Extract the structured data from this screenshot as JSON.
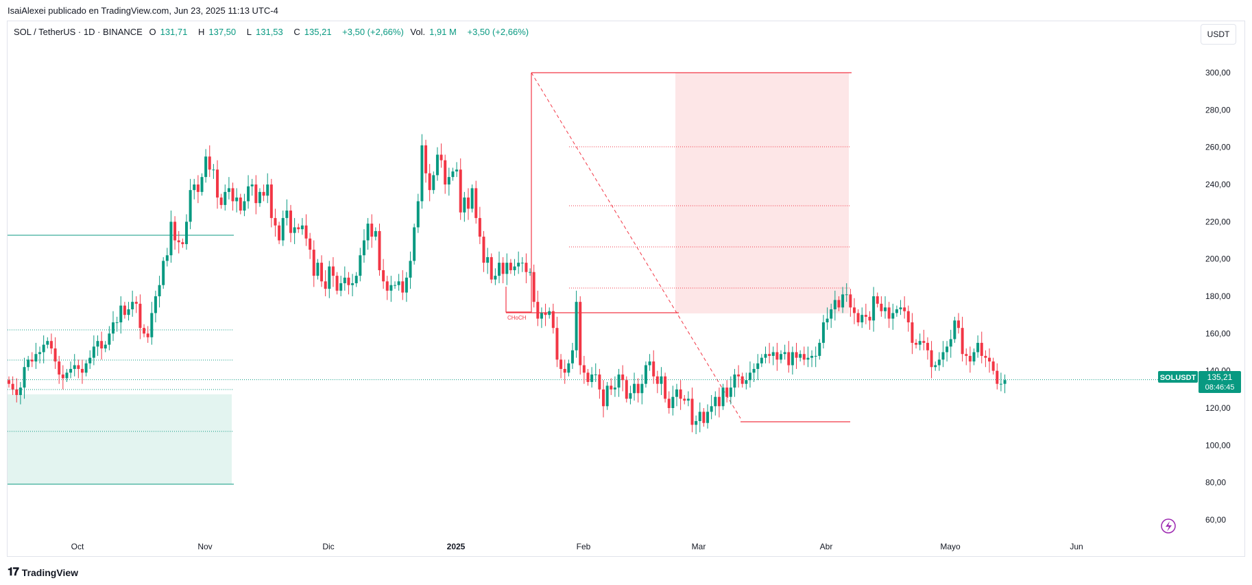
{
  "header": {
    "publisher_line": "IsaiAlexei publicado en TradingView.com, Jun 23, 2025 11:13 UTC-4"
  },
  "legend": {
    "symbol": "SOL / TetherUS · 1D · BINANCE",
    "o_label": "O",
    "o_value": "131,71",
    "h_label": "H",
    "h_value": "137,50",
    "l_label": "L",
    "l_value": "131,53",
    "c_label": "C",
    "c_value": "135,21",
    "change": "+3,50 (+2,66%)",
    "vol_label": "Vol.",
    "vol_value": "1,91 M",
    "vol_change": "+3,50 (+2,66%)"
  },
  "currency_button": "USDT",
  "price_tag": {
    "symbol": "SOLUSDT",
    "price": "135,21",
    "countdown": "08:46:45"
  },
  "annotation_label": "CHoCH",
  "footer": {
    "brand": "TradingView"
  },
  "colors": {
    "up": "#089981",
    "down": "#f23645",
    "grid_border": "#e0e3eb",
    "demand_zone": "#e3f4f0",
    "supply_zone": "#fde6e7"
  },
  "chart_data": {
    "type": "candlestick",
    "title": "SOL / TetherUS · 1D · BINANCE",
    "ylim": [
      50,
      305
    ],
    "y_ticks": [
      "300,00",
      "280,00",
      "260,00",
      "240,00",
      "220,00",
      "200,00",
      "180,00",
      "160,00",
      "140,00",
      "120,00",
      "100,00",
      "80,00",
      "60,00"
    ],
    "x_ticks": [
      "Oct",
      "Nov",
      "Dic",
      "2025",
      "Feb",
      "Mar",
      "Abr",
      "Mayo",
      "Jun"
    ],
    "current_price": 135.21,
    "series": [
      {
        "name": "close",
        "values": [
          133,
          130,
          127,
          131,
          142,
          146,
          145,
          149,
          150,
          154,
          156,
          152,
          145,
          138,
          136,
          139,
          141,
          143,
          141,
          139,
          144,
          147,
          153,
          156,
          152,
          154,
          160,
          166,
          166,
          175,
          170,
          173,
          177,
          176,
          163,
          160,
          158,
          171,
          180,
          186,
          199,
          202,
          220,
          210,
          209,
          208,
          220,
          237,
          240,
          236,
          244,
          255,
          248,
          248,
          233,
          229,
          236,
          238,
          231,
          233,
          226,
          231,
          239,
          240,
          230,
          236,
          234,
          240,
          222,
          218,
          210,
          222,
          226,
          214,
          217,
          216,
          218,
          211,
          205,
          191,
          198,
          188,
          184,
          196,
          191,
          183,
          187,
          190,
          186,
          187,
          191,
          202,
          210,
          219,
          212,
          215,
          194,
          188,
          183,
          186,
          186,
          188,
          182,
          190,
          199,
          217,
          231,
          261,
          246,
          237,
          245,
          256,
          253,
          240,
          244,
          247,
          248,
          225,
          233,
          227,
          238,
          222,
          212,
          198,
          201,
          189,
          191,
          198,
          192,
          198,
          194,
          196,
          198,
          198,
          193,
          193,
          177,
          168,
          171,
          170,
          172,
          163,
          146,
          141,
          139,
          144,
          151,
          177,
          143,
          139,
          134,
          138,
          138,
          130,
          121,
          132,
          130,
          131,
          138,
          135,
          125,
          128,
          133,
          128,
          133,
          143,
          145,
          137,
          133,
          137,
          125,
          120,
          126,
          130,
          125,
          124,
          125,
          111,
          113,
          118,
          112,
          118,
          121,
          126,
          121,
          131,
          126,
          131,
          138,
          137,
          133,
          135,
          139,
          141,
          144,
          147,
          149,
          148,
          150,
          146,
          149,
          150,
          143,
          150,
          147,
          149,
          146,
          147,
          148,
          148,
          155,
          166,
          168,
          173,
          178,
          174,
          181,
          181,
          174,
          171,
          166,
          170,
          169,
          167,
          180,
          176,
          172,
          174,
          168,
          171,
          173,
          174,
          172,
          166,
          155,
          154,
          156,
          155,
          151,
          142,
          143,
          146,
          150,
          153,
          157,
          167,
          163,
          149,
          148,
          145,
          150,
          155,
          148,
          147,
          145,
          140,
          133,
          133,
          135
        ]
      }
    ]
  }
}
